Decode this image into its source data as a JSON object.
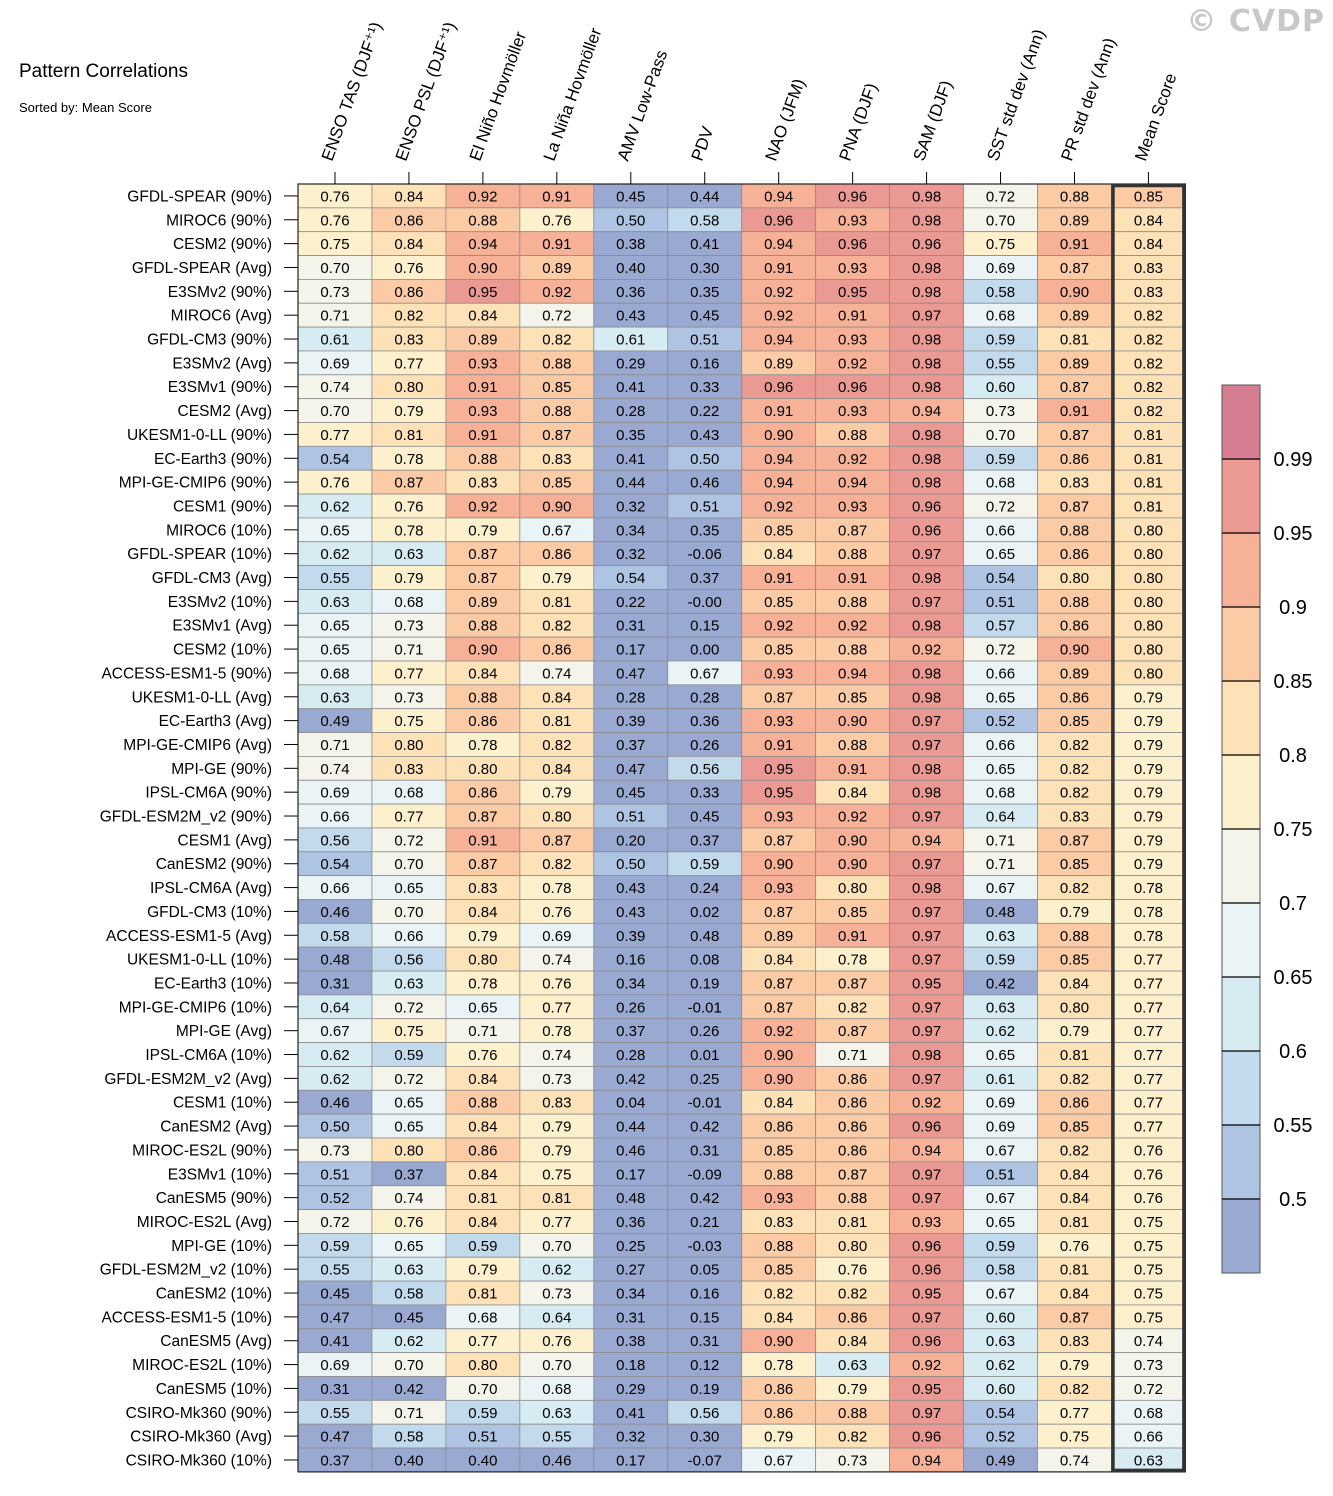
{
  "watermark": "© CVDP",
  "chart_data": {
    "type": "heatmap",
    "title": "Pattern Correlations",
    "subtitle": "Sorted by: Mean Score",
    "columns": [
      "ENSO TAS (DJF⁺¹)",
      "ENSO PSL (DJF⁺¹)",
      "El Niño Hovmöller",
      "La Niña Hovmöller",
      "AMV Low-Pass",
      "PDV",
      "NAO (JFM)",
      "PNA (DJF)",
      "SAM (DJF)",
      "SST std dev (Ann)",
      "PR std dev (Ann)",
      "Mean Score"
    ],
    "highlighted_column": "Mean Score",
    "rows": [
      {
        "model": "GFDL-SPEAR (90%)",
        "values": [
          "0.76",
          "0.84",
          "0.92",
          "0.91",
          "0.45",
          "0.44",
          "0.94",
          "0.96",
          "0.98",
          "0.72",
          "0.88",
          "0.85"
        ]
      },
      {
        "model": "MIROC6 (90%)",
        "values": [
          "0.76",
          "0.86",
          "0.88",
          "0.76",
          "0.50",
          "0.58",
          "0.96",
          "0.93",
          "0.98",
          "0.70",
          "0.89",
          "0.84"
        ]
      },
      {
        "model": "CESM2 (90%)",
        "values": [
          "0.75",
          "0.84",
          "0.94",
          "0.91",
          "0.38",
          "0.41",
          "0.94",
          "0.96",
          "0.96",
          "0.75",
          "0.91",
          "0.84"
        ]
      },
      {
        "model": "GFDL-SPEAR (Avg)",
        "values": [
          "0.70",
          "0.76",
          "0.90",
          "0.89",
          "0.40",
          "0.30",
          "0.91",
          "0.93",
          "0.98",
          "0.69",
          "0.87",
          "0.83"
        ]
      },
      {
        "model": "E3SMv2 (90%)",
        "values": [
          "0.73",
          "0.86",
          "0.95",
          "0.92",
          "0.36",
          "0.35",
          "0.92",
          "0.95",
          "0.98",
          "0.58",
          "0.90",
          "0.83"
        ]
      },
      {
        "model": "MIROC6 (Avg)",
        "values": [
          "0.71",
          "0.82",
          "0.84",
          "0.72",
          "0.43",
          "0.45",
          "0.92",
          "0.91",
          "0.97",
          "0.68",
          "0.89",
          "0.82"
        ]
      },
      {
        "model": "GFDL-CM3 (90%)",
        "values": [
          "0.61",
          "0.83",
          "0.89",
          "0.82",
          "0.61",
          "0.51",
          "0.94",
          "0.93",
          "0.98",
          "0.59",
          "0.81",
          "0.82"
        ]
      },
      {
        "model": "E3SMv2 (Avg)",
        "values": [
          "0.69",
          "0.77",
          "0.93",
          "0.88",
          "0.29",
          "0.16",
          "0.89",
          "0.92",
          "0.98",
          "0.55",
          "0.89",
          "0.82"
        ]
      },
      {
        "model": "E3SMv1 (90%)",
        "values": [
          "0.74",
          "0.80",
          "0.91",
          "0.85",
          "0.41",
          "0.33",
          "0.96",
          "0.96",
          "0.98",
          "0.60",
          "0.87",
          "0.82"
        ]
      },
      {
        "model": "CESM2 (Avg)",
        "values": [
          "0.70",
          "0.79",
          "0.93",
          "0.88",
          "0.28",
          "0.22",
          "0.91",
          "0.93",
          "0.94",
          "0.73",
          "0.91",
          "0.82"
        ]
      },
      {
        "model": "UKESM1-0-LL (90%)",
        "values": [
          "0.77",
          "0.81",
          "0.91",
          "0.87",
          "0.35",
          "0.43",
          "0.90",
          "0.88",
          "0.98",
          "0.70",
          "0.87",
          "0.81"
        ]
      },
      {
        "model": "EC-Earth3 (90%)",
        "values": [
          "0.54",
          "0.78",
          "0.88",
          "0.83",
          "0.41",
          "0.50",
          "0.94",
          "0.92",
          "0.98",
          "0.59",
          "0.86",
          "0.81"
        ]
      },
      {
        "model": "MPI-GE-CMIP6 (90%)",
        "values": [
          "0.76",
          "0.87",
          "0.83",
          "0.85",
          "0.44",
          "0.46",
          "0.94",
          "0.94",
          "0.98",
          "0.68",
          "0.83",
          "0.81"
        ]
      },
      {
        "model": "CESM1 (90%)",
        "values": [
          "0.62",
          "0.76",
          "0.92",
          "0.90",
          "0.32",
          "0.51",
          "0.92",
          "0.93",
          "0.96",
          "0.72",
          "0.87",
          "0.81"
        ]
      },
      {
        "model": "MIROC6 (10%)",
        "values": [
          "0.65",
          "0.78",
          "0.79",
          "0.67",
          "0.34",
          "0.35",
          "0.85",
          "0.87",
          "0.96",
          "0.66",
          "0.88",
          "0.80"
        ]
      },
      {
        "model": "GFDL-SPEAR (10%)",
        "values": [
          "0.62",
          "0.63",
          "0.87",
          "0.86",
          "0.32",
          "-0.06",
          "0.84",
          "0.88",
          "0.97",
          "0.65",
          "0.86",
          "0.80"
        ]
      },
      {
        "model": "GFDL-CM3 (Avg)",
        "values": [
          "0.55",
          "0.79",
          "0.87",
          "0.79",
          "0.54",
          "0.37",
          "0.91",
          "0.91",
          "0.98",
          "0.54",
          "0.80",
          "0.80"
        ]
      },
      {
        "model": "E3SMv2 (10%)",
        "values": [
          "0.63",
          "0.68",
          "0.89",
          "0.81",
          "0.22",
          "-0.00",
          "0.85",
          "0.88",
          "0.97",
          "0.51",
          "0.88",
          "0.80"
        ]
      },
      {
        "model": "E3SMv1 (Avg)",
        "values": [
          "0.65",
          "0.73",
          "0.88",
          "0.82",
          "0.31",
          "0.15",
          "0.92",
          "0.92",
          "0.98",
          "0.57",
          "0.86",
          "0.80"
        ]
      },
      {
        "model": "CESM2 (10%)",
        "values": [
          "0.65",
          "0.71",
          "0.90",
          "0.86",
          "0.17",
          "0.00",
          "0.85",
          "0.88",
          "0.92",
          "0.72",
          "0.90",
          "0.80"
        ]
      },
      {
        "model": "ACCESS-ESM1-5 (90%)",
        "values": [
          "0.68",
          "0.77",
          "0.84",
          "0.74",
          "0.47",
          "0.67",
          "0.93",
          "0.94",
          "0.98",
          "0.66",
          "0.89",
          "0.80"
        ]
      },
      {
        "model": "UKESM1-0-LL (Avg)",
        "values": [
          "0.63",
          "0.73",
          "0.88",
          "0.84",
          "0.28",
          "0.28",
          "0.87",
          "0.85",
          "0.98",
          "0.65",
          "0.86",
          "0.79"
        ]
      },
      {
        "model": "EC-Earth3 (Avg)",
        "values": [
          "0.49",
          "0.75",
          "0.86",
          "0.81",
          "0.39",
          "0.36",
          "0.93",
          "0.90",
          "0.97",
          "0.52",
          "0.85",
          "0.79"
        ]
      },
      {
        "model": "MPI-GE-CMIP6 (Avg)",
        "values": [
          "0.71",
          "0.80",
          "0.78",
          "0.82",
          "0.37",
          "0.26",
          "0.91",
          "0.88",
          "0.97",
          "0.66",
          "0.82",
          "0.79"
        ]
      },
      {
        "model": "MPI-GE (90%)",
        "values": [
          "0.74",
          "0.83",
          "0.80",
          "0.84",
          "0.47",
          "0.56",
          "0.95",
          "0.91",
          "0.98",
          "0.65",
          "0.82",
          "0.79"
        ]
      },
      {
        "model": "IPSL-CM6A (90%)",
        "values": [
          "0.69",
          "0.68",
          "0.86",
          "0.79",
          "0.45",
          "0.33",
          "0.95",
          "0.84",
          "0.98",
          "0.68",
          "0.82",
          "0.79"
        ]
      },
      {
        "model": "GFDL-ESM2M_v2 (90%)",
        "values": [
          "0.66",
          "0.77",
          "0.87",
          "0.80",
          "0.51",
          "0.45",
          "0.93",
          "0.92",
          "0.97",
          "0.64",
          "0.83",
          "0.79"
        ]
      },
      {
        "model": "CESM1 (Avg)",
        "values": [
          "0.56",
          "0.72",
          "0.91",
          "0.87",
          "0.20",
          "0.37",
          "0.87",
          "0.90",
          "0.94",
          "0.71",
          "0.87",
          "0.79"
        ]
      },
      {
        "model": "CanESM2 (90%)",
        "values": [
          "0.54",
          "0.70",
          "0.87",
          "0.82",
          "0.50",
          "0.59",
          "0.90",
          "0.90",
          "0.97",
          "0.71",
          "0.85",
          "0.79"
        ]
      },
      {
        "model": "IPSL-CM6A (Avg)",
        "values": [
          "0.66",
          "0.65",
          "0.83",
          "0.78",
          "0.43",
          "0.24",
          "0.93",
          "0.80",
          "0.98",
          "0.67",
          "0.82",
          "0.78"
        ]
      },
      {
        "model": "GFDL-CM3 (10%)",
        "values": [
          "0.46",
          "0.70",
          "0.84",
          "0.76",
          "0.43",
          "0.02",
          "0.87",
          "0.85",
          "0.97",
          "0.48",
          "0.79",
          "0.78"
        ]
      },
      {
        "model": "ACCESS-ESM1-5 (Avg)",
        "values": [
          "0.58",
          "0.66",
          "0.79",
          "0.69",
          "0.39",
          "0.48",
          "0.89",
          "0.91",
          "0.97",
          "0.63",
          "0.88",
          "0.78"
        ]
      },
      {
        "model": "UKESM1-0-LL (10%)",
        "values": [
          "0.48",
          "0.56",
          "0.80",
          "0.74",
          "0.16",
          "0.08",
          "0.84",
          "0.78",
          "0.97",
          "0.59",
          "0.85",
          "0.77"
        ]
      },
      {
        "model": "EC-Earth3 (10%)",
        "values": [
          "0.31",
          "0.63",
          "0.78",
          "0.76",
          "0.34",
          "0.19",
          "0.87",
          "0.87",
          "0.95",
          "0.42",
          "0.84",
          "0.77"
        ]
      },
      {
        "model": "MPI-GE-CMIP6 (10%)",
        "values": [
          "0.64",
          "0.72",
          "0.65",
          "0.77",
          "0.26",
          "-0.01",
          "0.87",
          "0.82",
          "0.97",
          "0.63",
          "0.80",
          "0.77"
        ]
      },
      {
        "model": "MPI-GE (Avg)",
        "values": [
          "0.67",
          "0.75",
          "0.71",
          "0.78",
          "0.37",
          "0.26",
          "0.92",
          "0.87",
          "0.97",
          "0.62",
          "0.79",
          "0.77"
        ]
      },
      {
        "model": "IPSL-CM6A (10%)",
        "values": [
          "0.62",
          "0.59",
          "0.76",
          "0.74",
          "0.28",
          "0.01",
          "0.90",
          "0.71",
          "0.98",
          "0.65",
          "0.81",
          "0.77"
        ]
      },
      {
        "model": "GFDL-ESM2M_v2 (Avg)",
        "values": [
          "0.62",
          "0.72",
          "0.84",
          "0.73",
          "0.42",
          "0.25",
          "0.90",
          "0.86",
          "0.97",
          "0.61",
          "0.82",
          "0.77"
        ]
      },
      {
        "model": "CESM1 (10%)",
        "values": [
          "0.46",
          "0.65",
          "0.88",
          "0.83",
          "0.04",
          "-0.01",
          "0.84",
          "0.86",
          "0.92",
          "0.69",
          "0.86",
          "0.77"
        ]
      },
      {
        "model": "CanESM2 (Avg)",
        "values": [
          "0.50",
          "0.65",
          "0.84",
          "0.79",
          "0.44",
          "0.42",
          "0.86",
          "0.86",
          "0.96",
          "0.69",
          "0.85",
          "0.77"
        ]
      },
      {
        "model": "MIROC-ES2L (90%)",
        "values": [
          "0.73",
          "0.80",
          "0.86",
          "0.79",
          "0.46",
          "0.31",
          "0.85",
          "0.86",
          "0.94",
          "0.67",
          "0.82",
          "0.76"
        ]
      },
      {
        "model": "E3SMv1 (10%)",
        "values": [
          "0.51",
          "0.37",
          "0.84",
          "0.75",
          "0.17",
          "-0.09",
          "0.88",
          "0.87",
          "0.97",
          "0.51",
          "0.84",
          "0.76"
        ]
      },
      {
        "model": "CanESM5 (90%)",
        "values": [
          "0.52",
          "0.74",
          "0.81",
          "0.81",
          "0.48",
          "0.42",
          "0.93",
          "0.88",
          "0.97",
          "0.67",
          "0.84",
          "0.76"
        ]
      },
      {
        "model": "MIROC-ES2L (Avg)",
        "values": [
          "0.72",
          "0.76",
          "0.84",
          "0.77",
          "0.36",
          "0.21",
          "0.83",
          "0.81",
          "0.93",
          "0.65",
          "0.81",
          "0.75"
        ]
      },
      {
        "model": "MPI-GE (10%)",
        "values": [
          "0.59",
          "0.65",
          "0.59",
          "0.70",
          "0.25",
          "-0.03",
          "0.88",
          "0.80",
          "0.96",
          "0.59",
          "0.76",
          "0.75"
        ]
      },
      {
        "model": "GFDL-ESM2M_v2 (10%)",
        "values": [
          "0.55",
          "0.63",
          "0.79",
          "0.62",
          "0.27",
          "0.05",
          "0.85",
          "0.76",
          "0.96",
          "0.58",
          "0.81",
          "0.75"
        ]
      },
      {
        "model": "CanESM2 (10%)",
        "values": [
          "0.45",
          "0.58",
          "0.81",
          "0.73",
          "0.34",
          "0.16",
          "0.82",
          "0.82",
          "0.95",
          "0.67",
          "0.84",
          "0.75"
        ]
      },
      {
        "model": "ACCESS-ESM1-5 (10%)",
        "values": [
          "0.47",
          "0.45",
          "0.68",
          "0.64",
          "0.31",
          "0.15",
          "0.84",
          "0.86",
          "0.97",
          "0.60",
          "0.87",
          "0.75"
        ]
      },
      {
        "model": "CanESM5 (Avg)",
        "values": [
          "0.41",
          "0.62",
          "0.77",
          "0.76",
          "0.38",
          "0.31",
          "0.90",
          "0.84",
          "0.96",
          "0.63",
          "0.83",
          "0.74"
        ]
      },
      {
        "model": "MIROC-ES2L (10%)",
        "values": [
          "0.69",
          "0.70",
          "0.80",
          "0.70",
          "0.18",
          "0.12",
          "0.78",
          "0.63",
          "0.92",
          "0.62",
          "0.79",
          "0.73"
        ]
      },
      {
        "model": "CanESM5 (10%)",
        "values": [
          "0.31",
          "0.42",
          "0.70",
          "0.68",
          "0.29",
          "0.19",
          "0.86",
          "0.79",
          "0.95",
          "0.60",
          "0.82",
          "0.72"
        ]
      },
      {
        "model": "CSIRO-Mk360 (90%)",
        "values": [
          "0.55",
          "0.71",
          "0.59",
          "0.63",
          "0.41",
          "0.56",
          "0.86",
          "0.88",
          "0.97",
          "0.54",
          "0.77",
          "0.68"
        ]
      },
      {
        "model": "CSIRO-Mk360 (Avg)",
        "values": [
          "0.47",
          "0.58",
          "0.51",
          "0.55",
          "0.32",
          "0.30",
          "0.79",
          "0.82",
          "0.96",
          "0.52",
          "0.75",
          "0.66"
        ]
      },
      {
        "model": "CSIRO-Mk360 (10%)",
        "values": [
          "0.37",
          "0.40",
          "0.40",
          "0.46",
          "0.17",
          "-0.07",
          "0.67",
          "0.73",
          "0.94",
          "0.49",
          "0.74",
          "0.63"
        ]
      }
    ],
    "colorbar": {
      "bounds": [
        0.5,
        0.55,
        0.6,
        0.65,
        0.7,
        0.75,
        0.8,
        0.85,
        0.9,
        0.95,
        0.99
      ],
      "tick_labels": [
        "0.5",
        "0.55",
        "0.6",
        "0.65",
        "0.7",
        "0.75",
        "0.8",
        "0.85",
        "0.9",
        "0.95",
        "0.99"
      ],
      "colors": [
        "#99a9d2",
        "#aec4e2",
        "#c3daec",
        "#d7ebf3",
        "#eaf4f7",
        "#f5f4eb",
        "#fdf0cc",
        "#fde2b8",
        "#fbcba6",
        "#f6b196",
        "#eb9993",
        "#d67e91"
      ],
      "placement": "right"
    }
  }
}
